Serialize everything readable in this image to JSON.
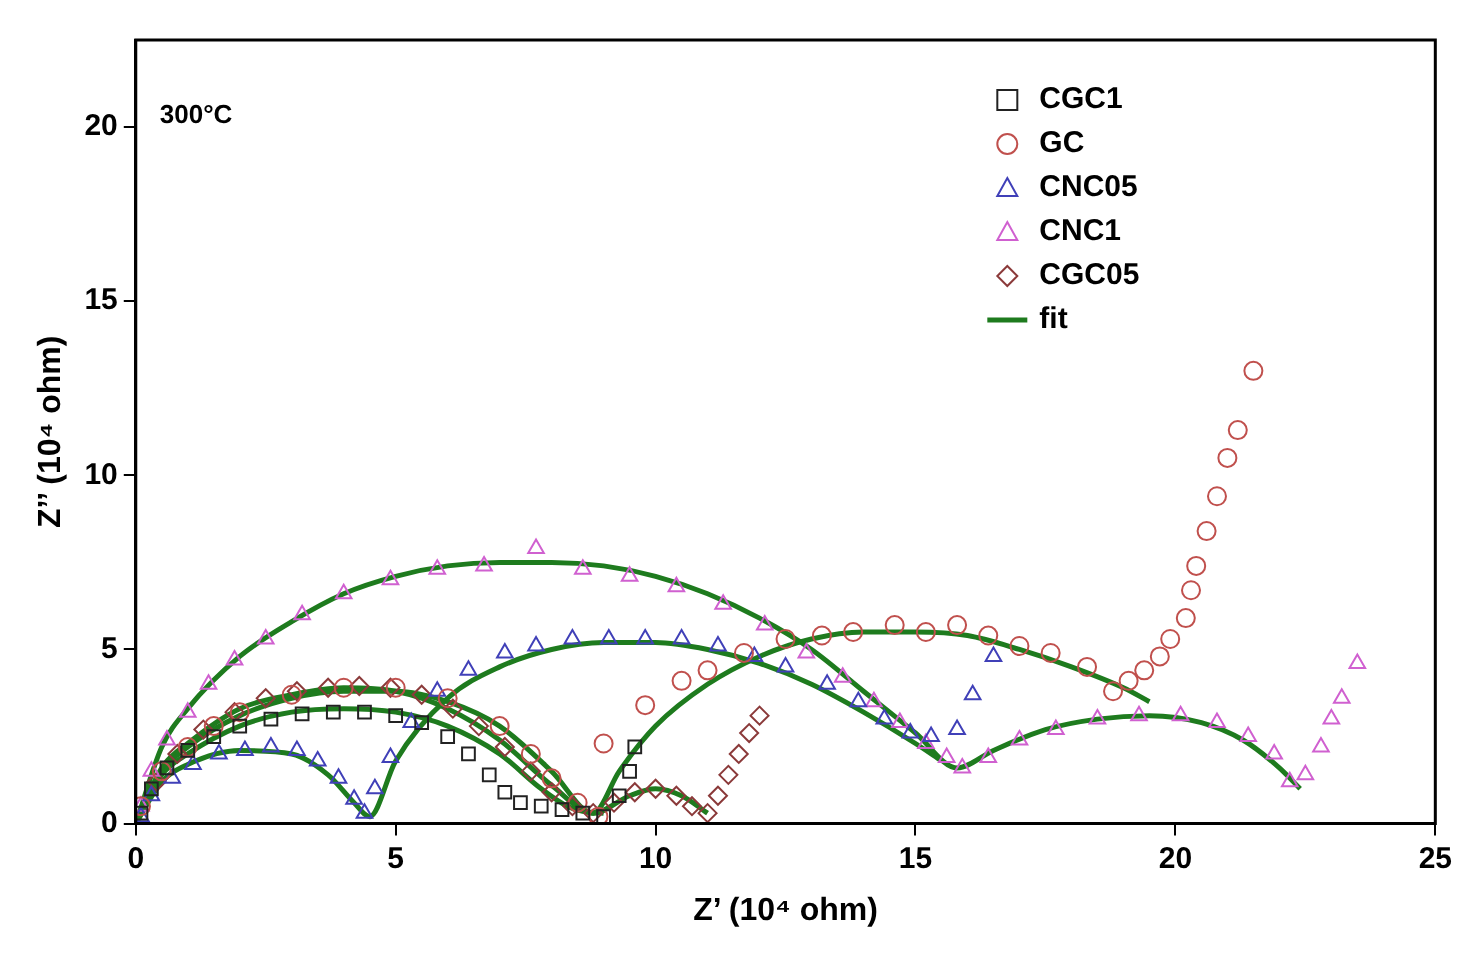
{
  "chart_data": {
    "type": "scatter",
    "xlabel": "Z’ (10⁴ ohm)",
    "ylabel": "Z’’ (10⁴ ohm)",
    "annotations": [
      "300°C"
    ],
    "xlim": [
      0,
      25
    ],
    "xticks": [
      0,
      5,
      10,
      15,
      20,
      25
    ],
    "ylim": [
      0,
      22.5
    ],
    "yticks": [
      0,
      5,
      10,
      15,
      20
    ],
    "grid": false,
    "legend": "top right",
    "series": [
      {
        "name": "CGC1",
        "marker": "square",
        "color": "#222222",
        "x": [
          0.1,
          0.3,
          0.6,
          1.0,
          1.5,
          2.0,
          2.6,
          3.2,
          3.8,
          4.4,
          5.0,
          5.5,
          6.0,
          6.4,
          6.8,
          7.1,
          7.4,
          7.8,
          8.2,
          8.6,
          9.0,
          9.3,
          9.5,
          9.6
        ],
        "values": [
          0.3,
          1.0,
          1.6,
          2.1,
          2.5,
          2.8,
          3.0,
          3.15,
          3.2,
          3.2,
          3.1,
          2.9,
          2.5,
          2.0,
          1.4,
          0.9,
          0.6,
          0.5,
          0.4,
          0.3,
          0.2,
          0.8,
          1.5,
          2.2
        ]
      },
      {
        "name": "GC",
        "marker": "circle",
        "color": "#c0504d",
        "x": [
          0.1,
          0.5,
          1.0,
          1.5,
          2.0,
          3.0,
          4.0,
          5.0,
          6.0,
          7.0,
          7.6,
          8.0,
          8.5,
          8.9,
          9.0,
          9.8,
          10.5,
          11.0,
          11.7,
          12.5,
          13.2,
          13.8,
          14.6,
          15.2,
          15.8,
          16.4,
          17.0,
          17.6,
          18.3,
          18.8,
          19.1,
          19.4,
          19.7,
          19.9,
          20.2,
          20.3,
          20.4,
          20.6,
          20.8,
          21.0,
          21.2,
          21.5
        ],
        "values": [
          0.5,
          1.5,
          2.2,
          2.8,
          3.2,
          3.7,
          3.9,
          3.9,
          3.6,
          2.8,
          2.0,
          1.3,
          0.6,
          0.2,
          2.3,
          3.4,
          4.1,
          4.4,
          4.9,
          5.3,
          5.4,
          5.5,
          5.7,
          5.5,
          5.7,
          5.4,
          5.1,
          4.9,
          4.5,
          3.8,
          4.1,
          4.4,
          4.8,
          5.3,
          5.9,
          6.7,
          7.4,
          8.4,
          9.4,
          10.5,
          11.3,
          13.0
        ]
      },
      {
        "name": "CNC05",
        "marker": "triangle",
        "color": "#4040b8",
        "x": [
          0.1,
          0.3,
          0.7,
          1.1,
          1.6,
          2.1,
          2.6,
          3.1,
          3.5,
          3.9,
          4.2,
          4.4,
          4.6,
          4.9,
          5.3,
          5.8,
          6.4,
          7.1,
          7.7,
          8.4,
          9.1,
          9.8,
          10.5,
          11.2,
          11.9,
          12.5,
          13.3,
          13.9,
          14.4,
          14.9,
          15.3,
          15.8,
          16.1,
          16.5
        ],
        "values": [
          0.2,
          0.8,
          1.3,
          1.7,
          2.0,
          2.1,
          2.2,
          2.1,
          1.8,
          1.3,
          0.7,
          0.3,
          1.0,
          1.9,
          2.9,
          3.8,
          4.4,
          4.9,
          5.1,
          5.3,
          5.3,
          5.3,
          5.3,
          5.1,
          4.8,
          4.5,
          4.0,
          3.5,
          3.0,
          2.6,
          2.5,
          2.7,
          3.7,
          4.8
        ]
      },
      {
        "name": "CNC1",
        "marker": "triangle",
        "color": "#d060d0",
        "x": [
          0.1,
          0.3,
          0.6,
          1.0,
          1.4,
          1.9,
          2.5,
          3.2,
          4.0,
          4.9,
          5.8,
          6.7,
          7.7,
          8.6,
          9.5,
          10.4,
          11.3,
          12.1,
          12.9,
          13.6,
          14.2,
          14.7,
          15.2,
          15.6,
          15.9,
          16.4,
          17.0,
          17.7,
          18.5,
          19.3,
          20.1,
          20.8,
          21.4,
          21.9,
          22.2,
          22.5,
          22.8,
          23.0,
          23.2,
          23.5
        ],
        "values": [
          0.5,
          1.5,
          2.4,
          3.2,
          4.0,
          4.7,
          5.3,
          6.0,
          6.6,
          7.0,
          7.3,
          7.4,
          7.9,
          7.3,
          7.1,
          6.8,
          6.3,
          5.7,
          4.9,
          4.2,
          3.5,
          2.9,
          2.3,
          1.9,
          1.6,
          1.9,
          2.4,
          2.7,
          3.0,
          3.1,
          3.1,
          2.9,
          2.5,
          2.0,
          1.2,
          1.4,
          2.2,
          3.0,
          3.6,
          4.6
        ]
      },
      {
        "name": "CGC05",
        "marker": "diamond",
        "color": "#8b3a3a",
        "x": [
          0.4,
          0.8,
          1.3,
          1.9,
          2.5,
          3.1,
          3.7,
          4.3,
          4.9,
          5.5,
          6.1,
          6.6,
          7.1,
          7.6,
          8.0,
          8.4,
          8.8,
          9.2,
          9.6,
          10.0,
          10.4,
          10.7,
          11.0,
          11.2,
          11.4,
          11.6,
          11.8,
          12.0
        ],
        "values": [
          1.2,
          2.0,
          2.7,
          3.2,
          3.6,
          3.8,
          3.9,
          3.95,
          3.9,
          3.7,
          3.3,
          2.8,
          2.2,
          1.5,
          0.9,
          0.5,
          0.3,
          0.6,
          0.9,
          1.0,
          0.8,
          0.5,
          0.3,
          0.8,
          1.4,
          2.0,
          2.6,
          3.1
        ]
      },
      {
        "name": "fit",
        "type": "line",
        "marker": "none",
        "line_style": "solid",
        "color": "#1e7b1e",
        "x": [
          0,
          0.5,
          1,
          2,
          3,
          4,
          5,
          6,
          7,
          7.8,
          8.3,
          8.6,
          9.0
        ],
        "values": [
          0,
          1.4,
          2.0,
          2.8,
          3.2,
          3.3,
          3.2,
          2.8,
          2.0,
          1.0,
          0.5,
          0.35,
          0.3
        ]
      },
      {
        "type": "line",
        "marker": "none",
        "line_style": "solid",
        "color": "#1e7b1e",
        "x": [
          0,
          0.5,
          1,
          2,
          3,
          4,
          5,
          6,
          7,
          8,
          8.8,
          9.3,
          10,
          11,
          12,
          13,
          14,
          15,
          16,
          17,
          18,
          19,
          19.5
        ],
        "values": [
          0,
          1.5,
          2.2,
          3.1,
          3.6,
          3.8,
          3.8,
          3.5,
          2.8,
          1.5,
          0.3,
          1.5,
          2.8,
          4.0,
          4.8,
          5.3,
          5.5,
          5.5,
          5.4,
          5.0,
          4.5,
          3.9,
          3.5
        ]
      },
      {
        "type": "line",
        "marker": "none",
        "line_style": "solid",
        "color": "#1e7b1e",
        "x": [
          0,
          0.5,
          1,
          2,
          3,
          3.7,
          4.2,
          4.5,
          5,
          6,
          7,
          8,
          9,
          10,
          11,
          12,
          13,
          14,
          15,
          15.5
        ],
        "values": [
          0,
          1.2,
          1.7,
          2.1,
          2.0,
          1.4,
          0.6,
          0.2,
          1.8,
          3.6,
          4.5,
          5.0,
          5.2,
          5.2,
          5.0,
          4.6,
          4.0,
          3.2,
          2.3,
          1.8
        ]
      },
      {
        "type": "line",
        "marker": "none",
        "line_style": "solid",
        "color": "#1e7b1e",
        "x": [
          0,
          0.5,
          1,
          2,
          3,
          4,
          5,
          6,
          7,
          8,
          9,
          10,
          11,
          12,
          13,
          14,
          15,
          15.8,
          16.5,
          17.5,
          18.5,
          19.5,
          20.5,
          21.3,
          22.0,
          22.4
        ],
        "values": [
          0,
          2.2,
          3.3,
          4.8,
          5.8,
          6.6,
          7.1,
          7.4,
          7.5,
          7.5,
          7.4,
          7.1,
          6.6,
          5.9,
          5.0,
          3.8,
          2.6,
          1.6,
          2.1,
          2.7,
          3.0,
          3.1,
          2.9,
          2.4,
          1.6,
          1.0
        ]
      },
      {
        "type": "line",
        "marker": "none",
        "line_style": "solid",
        "color": "#1e7b1e",
        "x": [
          0,
          0.5,
          1,
          2,
          3,
          4,
          5,
          6,
          7,
          8,
          8.8,
          9.5,
          10,
          10.5,
          11
        ],
        "values": [
          0,
          1.6,
          2.3,
          3.3,
          3.7,
          3.9,
          3.8,
          3.3,
          2.4,
          1.1,
          0.3,
          0.8,
          1.0,
          0.8,
          0.3
        ]
      }
    ]
  }
}
